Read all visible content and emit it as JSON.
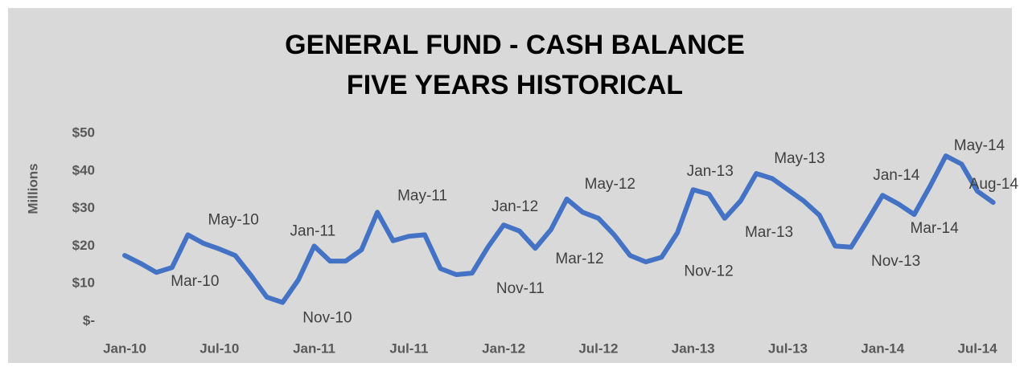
{
  "chart_data": {
    "type": "line",
    "title": "GENERAL FUND - CASH BALANCE",
    "subtitle": "FIVE YEARS HISTORICAL",
    "y_label": "Millions",
    "categories": [
      "Jan-10",
      null,
      null,
      null,
      null,
      null,
      "Jul-10",
      null,
      null,
      null,
      null,
      null,
      "Jan-11",
      null,
      null,
      null,
      null,
      null,
      "Jul-11",
      null,
      null,
      null,
      null,
      null,
      "Jan-12",
      null,
      null,
      null,
      null,
      null,
      "Jul-12",
      null,
      null,
      null,
      null,
      null,
      "Jan-13",
      null,
      null,
      null,
      null,
      null,
      "Jul-13",
      null,
      null,
      null,
      null,
      null,
      "Jan-14",
      null,
      null,
      null,
      null,
      null,
      "Jul-14",
      null
    ],
    "series": [
      {
        "color": "#4472c4",
        "values": [
          17.5,
          15.4,
          13,
          14.3,
          23,
          20.7,
          19.2,
          17.5,
          12.2,
          6.4,
          5,
          11,
          20,
          16,
          16,
          19,
          29,
          21.4,
          22.6,
          23,
          14,
          12.4,
          12.8,
          19.7,
          25.6,
          24,
          19.4,
          24.4,
          32.5,
          29,
          27.4,
          23,
          17.5,
          15.8,
          17,
          23.5,
          35,
          33.8,
          27.4,
          32,
          39.3,
          38,
          35,
          32,
          28.2,
          20,
          19.7,
          26.5,
          33.5,
          31.2,
          28.4,
          35.9,
          44,
          41.8,
          34.6,
          31.6
        ],
        "value_labels": [
          null,
          null,
          "Mar-10",
          null,
          "May-10",
          null,
          null,
          null,
          null,
          null,
          "Nov-10",
          null,
          "Jan-11",
          null,
          null,
          null,
          "May-11",
          null,
          null,
          null,
          null,
          null,
          "Nov-11",
          null,
          "Jan-12",
          null,
          "Mar-12",
          null,
          "May-12",
          null,
          null,
          null,
          null,
          null,
          "Nov-12",
          null,
          "Jan-13",
          null,
          "Mar-13",
          null,
          "May-13",
          null,
          null,
          null,
          null,
          null,
          "Nov-13",
          null,
          "Jan-14",
          null,
          "Mar-14",
          null,
          "May-14",
          null,
          null,
          "Aug-14"
        ]
      }
    ],
    "ylim": [
      0,
      50
    ],
    "yticks": [
      {
        "value": 0,
        "label": "$-"
      },
      {
        "value": 10,
        "label": "$10"
      },
      {
        "value": 20,
        "label": "$20"
      },
      {
        "value": 30,
        "label": "$30"
      },
      {
        "value": 40,
        "label": "$40"
      },
      {
        "value": 50,
        "label": "$50"
      }
    ],
    "grid": false
  }
}
